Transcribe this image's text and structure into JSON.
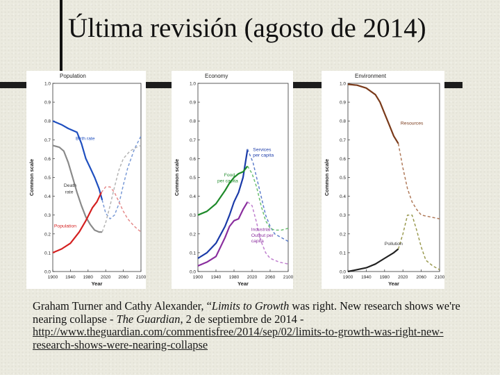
{
  "slide": {
    "title": "Última revisión (agosto de 2014)",
    "caption": {
      "authors": "Graham Turner and Cathy Alexander, “",
      "book": "Limits to Growth",
      "middle": " was right. New research shows we're nearing collapse - ",
      "paper": "The Guardian",
      "date": ", 2 de septiembre de 2014 -",
      "url": "http://www.theguardian.com/commentisfree/2014/sep/02/limits-to-growth-was-right-new-research-shows-were-nearing-collapse"
    }
  },
  "chart_data": [
    {
      "type": "line",
      "title": "Population",
      "xlabel": "Year",
      "ylabel": "Common scale",
      "xlim": [
        1900,
        2100
      ],
      "ylim": [
        0,
        1.0
      ],
      "xticks": [
        1900,
        1940,
        1980,
        2020,
        2060,
        2100
      ],
      "yticks": [
        0.0,
        0.1,
        0.2,
        0.3,
        0.4,
        0.5,
        0.6,
        0.7,
        0.8,
        0.9,
        1.0
      ],
      "series": [
        {
          "name": "Birth rate",
          "color": "#1f4fbf",
          "style": "solid",
          "points": [
            [
              1900,
              0.8
            ],
            [
              1920,
              0.78
            ],
            [
              1935,
              0.76
            ],
            [
              1945,
              0.75
            ],
            [
              1955,
              0.74
            ],
            [
              1965,
              0.68
            ],
            [
              1975,
              0.6
            ],
            [
              1985,
              0.55
            ],
            [
              1995,
              0.5
            ],
            [
              2005,
              0.44
            ],
            [
              2012,
              0.38
            ]
          ]
        },
        {
          "name": "Birth rate",
          "color": "#7a9ad6",
          "style": "dashed",
          "points": [
            [
              2012,
              0.38
            ],
            [
              2020,
              0.31
            ],
            [
              2030,
              0.28
            ],
            [
              2040,
              0.3
            ],
            [
              2050,
              0.36
            ],
            [
              2060,
              0.46
            ],
            [
              2070,
              0.55
            ],
            [
              2085,
              0.65
            ],
            [
              2100,
              0.72
            ]
          ]
        },
        {
          "name": "Death rate",
          "color": "#8a8a8a",
          "style": "solid",
          "points": [
            [
              1900,
              0.67
            ],
            [
              1915,
              0.66
            ],
            [
              1925,
              0.64
            ],
            [
              1935,
              0.58
            ],
            [
              1945,
              0.5
            ],
            [
              1955,
              0.42
            ],
            [
              1965,
              0.35
            ],
            [
              1975,
              0.29
            ],
            [
              1985,
              0.25
            ],
            [
              1995,
              0.22
            ],
            [
              2005,
              0.21
            ],
            [
              2012,
              0.21
            ]
          ]
        },
        {
          "name": "Death rate",
          "color": "#b4b4b4",
          "style": "dashed",
          "points": [
            [
              2012,
              0.21
            ],
            [
              2020,
              0.26
            ],
            [
              2030,
              0.35
            ],
            [
              2040,
              0.45
            ],
            [
              2050,
              0.54
            ],
            [
              2060,
              0.6
            ],
            [
              2075,
              0.64
            ],
            [
              2090,
              0.66
            ],
            [
              2100,
              0.67
            ]
          ]
        },
        {
          "name": "Population",
          "color": "#d42020",
          "style": "solid",
          "points": [
            [
              1900,
              0.1
            ],
            [
              1920,
              0.12
            ],
            [
              1940,
              0.15
            ],
            [
              1960,
              0.21
            ],
            [
              1975,
              0.27
            ],
            [
              1990,
              0.34
            ],
            [
              2000,
              0.37
            ],
            [
              2010,
              0.42
            ]
          ]
        },
        {
          "name": "Population",
          "color": "#e58a8a",
          "style": "dashed",
          "points": [
            [
              2010,
              0.42
            ],
            [
              2020,
              0.45
            ],
            [
              2030,
              0.45
            ],
            [
              2040,
              0.42
            ],
            [
              2050,
              0.37
            ],
            [
              2060,
              0.32
            ],
            [
              2070,
              0.28
            ],
            [
              2085,
              0.24
            ],
            [
              2100,
              0.21
            ]
          ]
        }
      ],
      "annotations": [
        {
          "text": "Birth rate",
          "x": 1952,
          "y": 0.7,
          "color": "#1f4fbf"
        },
        {
          "text": "Death",
          "x": 1925,
          "y": 0.45,
          "color": "#333333"
        },
        {
          "text": "rate",
          "x": 1928,
          "y": 0.415,
          "color": "#333333"
        },
        {
          "text": "Population",
          "x": 1903,
          "y": 0.235,
          "color": "#d42020"
        }
      ]
    },
    {
      "type": "line",
      "title": "Economy",
      "xlabel": "Year",
      "ylabel": "Common scale",
      "xlim": [
        1900,
        2100
      ],
      "ylim": [
        0,
        1.0
      ],
      "xticks": [
        1900,
        1940,
        1980,
        2020,
        2060,
        2100
      ],
      "yticks": [
        0.0,
        0.1,
        0.2,
        0.3,
        0.4,
        0.5,
        0.6,
        0.7,
        0.8,
        0.9,
        1.0
      ],
      "series": [
        {
          "name": "Services per capita",
          "color": "#1a3aa8",
          "style": "solid",
          "points": [
            [
              1900,
              0.07
            ],
            [
              1920,
              0.1
            ],
            [
              1940,
              0.15
            ],
            [
              1960,
              0.24
            ],
            [
              1970,
              0.3
            ],
            [
              1980,
              0.37
            ],
            [
              1990,
              0.42
            ],
            [
              2000,
              0.5
            ],
            [
              2010,
              0.65
            ]
          ]
        },
        {
          "name": "Services per capita",
          "color": "#5f7fcc",
          "style": "dashed",
          "points": [
            [
              2010,
              0.65
            ],
            [
              2015,
              0.62
            ],
            [
              2022,
              0.58
            ],
            [
              2030,
              0.5
            ],
            [
              2040,
              0.4
            ],
            [
              2050,
              0.3
            ],
            [
              2060,
              0.24
            ],
            [
              2070,
              0.2
            ],
            [
              2085,
              0.18
            ],
            [
              2100,
              0.16
            ]
          ]
        },
        {
          "name": "Food per capita",
          "color": "#1e8a2a",
          "style": "solid",
          "points": [
            [
              1900,
              0.3
            ],
            [
              1920,
              0.32
            ],
            [
              1940,
              0.36
            ],
            [
              1960,
              0.43
            ],
            [
              1970,
              0.47
            ],
            [
              1980,
              0.5
            ],
            [
              1990,
              0.52
            ],
            [
              2000,
              0.53
            ],
            [
              2010,
              0.56
            ]
          ]
        },
        {
          "name": "Food per capita",
          "color": "#6bbf70",
          "style": "dashed",
          "points": [
            [
              2010,
              0.56
            ],
            [
              2020,
              0.52
            ],
            [
              2030,
              0.45
            ],
            [
              2040,
              0.35
            ],
            [
              2050,
              0.27
            ],
            [
              2060,
              0.23
            ],
            [
              2070,
              0.22
            ],
            [
              2085,
              0.22
            ],
            [
              2100,
              0.23
            ]
          ]
        },
        {
          "name": "Industrial Output per capita",
          "color": "#8a2e9e",
          "style": "solid",
          "points": [
            [
              1900,
              0.03
            ],
            [
              1920,
              0.05
            ],
            [
              1940,
              0.08
            ],
            [
              1960,
              0.18
            ],
            [
              1970,
              0.24
            ],
            [
              1980,
              0.27
            ],
            [
              1990,
              0.28
            ],
            [
              2000,
              0.33
            ],
            [
              2010,
              0.37
            ]
          ]
        },
        {
          "name": "Industrial Output per capita",
          "color": "#c080cf",
          "style": "dashed",
          "points": [
            [
              2010,
              0.37
            ],
            [
              2020,
              0.35
            ],
            [
              2030,
              0.26
            ],
            [
              2040,
              0.16
            ],
            [
              2050,
              0.1
            ],
            [
              2060,
              0.07
            ],
            [
              2080,
              0.05
            ],
            [
              2100,
              0.04
            ]
          ]
        }
      ],
      "annotations": [
        {
          "text": "Services",
          "x": 2022,
          "y": 0.64,
          "color": "#1a3aa8"
        },
        {
          "text": "per capita",
          "x": 2022,
          "y": 0.61,
          "color": "#1a3aa8"
        },
        {
          "text": "Food",
          "x": 1958,
          "y": 0.505,
          "color": "#1e8a2a"
        },
        {
          "text": "per capita",
          "x": 1943,
          "y": 0.475,
          "color": "#1e8a2a"
        },
        {
          "text": "Industrial",
          "x": 2018,
          "y": 0.215,
          "color": "#8a2e9e"
        },
        {
          "text": "Output per",
          "x": 2018,
          "y": 0.185,
          "color": "#8a2e9e"
        },
        {
          "text": "capita",
          "x": 2018,
          "y": 0.155,
          "color": "#8a2e9e"
        }
      ]
    },
    {
      "type": "line",
      "title": "Environment",
      "xlabel": "Year",
      "ylabel": "Common scale",
      "xlim": [
        1900,
        2100
      ],
      "ylim": [
        0,
        1.0
      ],
      "xticks": [
        1900,
        1940,
        1980,
        2020,
        2060,
        2100
      ],
      "yticks": [
        0.0,
        0.1,
        0.2,
        0.3,
        0.4,
        0.5,
        0.6,
        0.7,
        0.8,
        0.9,
        1.0
      ],
      "series": [
        {
          "name": "Resources",
          "color": "#7a3a1a",
          "style": "solid",
          "points": [
            [
              1900,
              0.995
            ],
            [
              1920,
              0.99
            ],
            [
              1940,
              0.975
            ],
            [
              1960,
              0.94
            ],
            [
              1970,
              0.9
            ],
            [
              1980,
              0.84
            ],
            [
              1990,
              0.78
            ],
            [
              2000,
              0.72
            ],
            [
              2010,
              0.68
            ]
          ]
        },
        {
          "name": "Resources",
          "color": "#b07a5a",
          "style": "dashed",
          "points": [
            [
              2010,
              0.68
            ],
            [
              2020,
              0.55
            ],
            [
              2030,
              0.44
            ],
            [
              2040,
              0.37
            ],
            [
              2050,
              0.33
            ],
            [
              2060,
              0.3
            ],
            [
              2080,
              0.29
            ],
            [
              2100,
              0.28
            ]
          ]
        },
        {
          "name": "Pollution",
          "color": "#222222",
          "style": "solid",
          "points": [
            [
              1900,
              0.0
            ],
            [
              1920,
              0.01
            ],
            [
              1940,
              0.02
            ],
            [
              1960,
              0.04
            ],
            [
              1980,
              0.07
            ],
            [
              2000,
              0.1
            ],
            [
              2010,
              0.12
            ]
          ]
        },
        {
          "name": "Pollution",
          "color": "#9a9a50",
          "style": "dashed",
          "points": [
            [
              2010,
              0.12
            ],
            [
              2020,
              0.2
            ],
            [
              2030,
              0.3
            ],
            [
              2040,
              0.3
            ],
            [
              2050,
              0.22
            ],
            [
              2060,
              0.13
            ],
            [
              2070,
              0.06
            ],
            [
              2085,
              0.03
            ],
            [
              2100,
              0.01
            ]
          ]
        }
      ],
      "annotations": [
        {
          "text": "Resources",
          "x": 2015,
          "y": 0.78,
          "color": "#7a3a1a"
        },
        {
          "text": "Pollution",
          "x": 1980,
          "y": 0.14,
          "color": "#333333"
        }
      ]
    }
  ]
}
